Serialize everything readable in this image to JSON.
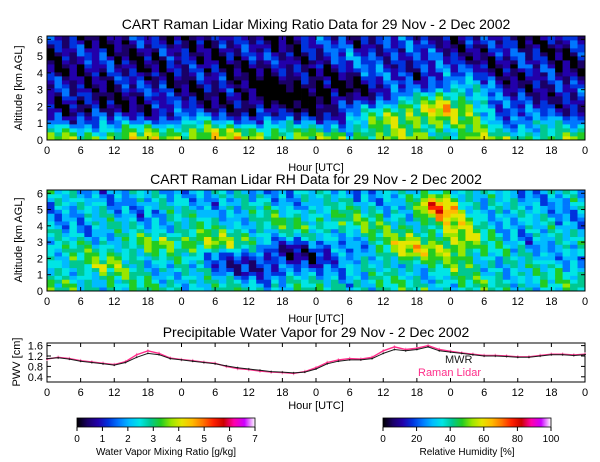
{
  "chart_data": [
    {
      "type": "heatmap",
      "title": "CART Raman Lidar Mixing Ratio Data for 29 Nov - 2 Dec 2002",
      "xlabel": "Hour [UTC]",
      "ylabel": "Altitude [km AGL]",
      "xticks": [
        "0",
        "6",
        "12",
        "18",
        "0",
        "6",
        "12",
        "18",
        "0",
        "6",
        "12",
        "18",
        "0",
        "6",
        "12",
        "18",
        "0"
      ],
      "yticks": [
        "0",
        "1",
        "2",
        "3",
        "4",
        "5",
        "6"
      ],
      "xlim": [
        0,
        96
      ],
      "ylim": [
        0,
        6.2
      ],
      "variable": "mixing",
      "colorbar": "mixing"
    },
    {
      "type": "heatmap",
      "title": "CART Raman Lidar RH Data for 29 Nov - 2 Dec 2002",
      "xlabel": "Hour [UTC]",
      "ylabel": "Altitude [km AGL]",
      "xticks": [
        "0",
        "6",
        "12",
        "18",
        "0",
        "6",
        "12",
        "18",
        "0",
        "6",
        "12",
        "18",
        "0",
        "6",
        "12",
        "18",
        "0"
      ],
      "yticks": [
        "0",
        "1",
        "2",
        "3",
        "4",
        "5",
        "6"
      ],
      "xlim": [
        0,
        96
      ],
      "ylim": [
        0,
        6.2
      ],
      "variable": "rh",
      "colorbar": "rh"
    },
    {
      "type": "line",
      "title": "Precipitable Water Vapor for 29 Nov - 2 Dec 2002",
      "xlabel": "Hour [UTC]",
      "ylabel": "PWV [cm]",
      "xticks": [
        "0",
        "6",
        "12",
        "18",
        "0",
        "6",
        "12",
        "18",
        "0",
        "6",
        "12",
        "18",
        "0",
        "6",
        "12",
        "18",
        "0"
      ],
      "yticks": [
        "0.4",
        "0.8",
        "1.2",
        "1.6"
      ],
      "xlim": [
        0,
        96
      ],
      "ylim": [
        0.2,
        1.7
      ],
      "series": [
        {
          "name": "MWR",
          "color": "#1a1a1a",
          "x": [
            0,
            2,
            4,
            6,
            8,
            10,
            12,
            14,
            16,
            18,
            20,
            22,
            24,
            26,
            28,
            30,
            32,
            34,
            36,
            38,
            40,
            42,
            44,
            46,
            48,
            50,
            52,
            54,
            56,
            58,
            60,
            62,
            64,
            66,
            68,
            70,
            72,
            74,
            76,
            78,
            80,
            82,
            84,
            86,
            88,
            90,
            92,
            94,
            96
          ],
          "y": [
            1.1,
            1.13,
            1.08,
            1.0,
            0.95,
            0.9,
            0.85,
            0.95,
            1.15,
            1.3,
            1.25,
            1.1,
            1.05,
            1.0,
            0.95,
            0.9,
            0.82,
            0.75,
            0.7,
            0.65,
            0.6,
            0.58,
            0.55,
            0.58,
            0.7,
            0.9,
            1.0,
            1.05,
            1.05,
            1.1,
            1.3,
            1.45,
            1.4,
            1.45,
            1.55,
            1.4,
            1.35,
            1.3,
            1.25,
            1.2,
            1.2,
            1.18,
            1.15,
            1.15,
            1.2,
            1.25,
            1.25,
            1.22,
            1.25
          ]
        },
        {
          "name": "Raman Lidar",
          "color": "#ff2d8a",
          "x": [
            0,
            2,
            4,
            6,
            8,
            10,
            12,
            14,
            16,
            18,
            20,
            22,
            24,
            26,
            28,
            30,
            32,
            34,
            36,
            38,
            40,
            42,
            44,
            46,
            48,
            50,
            52,
            54,
            56,
            58,
            60,
            62,
            64,
            66,
            68,
            70,
            72,
            74,
            76,
            78,
            80,
            82,
            84,
            86,
            88,
            90,
            92,
            94,
            96
          ],
          "y": [
            1.08,
            1.15,
            1.1,
            1.02,
            0.97,
            0.92,
            0.87,
            0.98,
            1.25,
            1.4,
            1.3,
            1.12,
            1.06,
            1.02,
            0.96,
            0.92,
            0.8,
            0.72,
            0.68,
            0.62,
            0.58,
            0.56,
            0.53,
            0.6,
            0.75,
            0.95,
            1.05,
            1.1,
            1.08,
            1.15,
            1.4,
            1.55,
            1.45,
            1.5,
            1.6,
            1.45,
            1.38,
            1.32,
            1.27,
            1.22,
            1.22,
            1.2,
            1.17,
            1.17,
            1.22,
            1.27,
            1.27,
            1.24,
            1.27
          ]
        }
      ]
    }
  ],
  "colorbars": {
    "mixing": {
      "label": "Water Vapor Mixing Ratio [g/kg]",
      "ticks": [
        "0",
        "1",
        "2",
        "3",
        "4",
        "5",
        "6",
        "7"
      ],
      "range": [
        0,
        7
      ]
    },
    "rh": {
      "label": "Relative Humidity [%]",
      "ticks": [
        "0",
        "20",
        "40",
        "60",
        "80",
        "100"
      ],
      "range": [
        0,
        100
      ]
    }
  },
  "colors": {
    "scale": [
      "#000000",
      "#1a0066",
      "#2200aa",
      "#0033dd",
      "#0077ff",
      "#00bbff",
      "#00e5e5",
      "#00c890",
      "#22cc22",
      "#99e600",
      "#e5e500",
      "#ffbb00",
      "#ff7700",
      "#ff2200",
      "#cc0000",
      "#ff00aa",
      "#cc00ff",
      "#ffffff"
    ],
    "mwr": "#1a1a1a",
    "lidar": "#ff2d8a"
  }
}
